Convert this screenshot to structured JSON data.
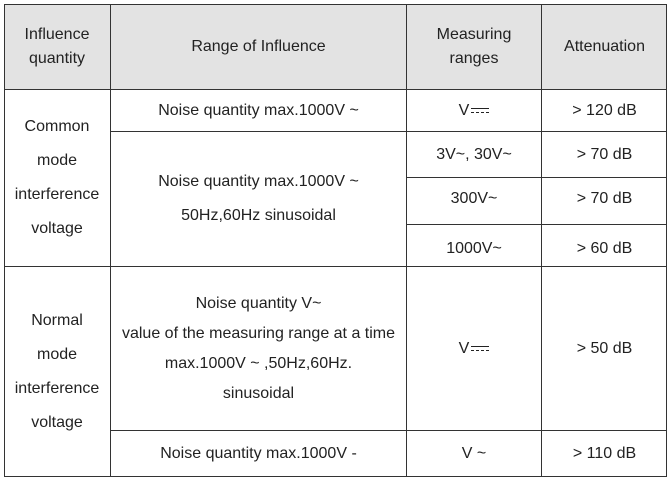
{
  "headers": {
    "influence_quantity": [
      "Influence",
      "quantity"
    ],
    "range_of_influence": "Range of Influence",
    "measuring_ranges": [
      "Measuring",
      "ranges"
    ],
    "attenuation": "Attenuation"
  },
  "common_mode": {
    "label": [
      "Common",
      "mode",
      "interference",
      "voltage"
    ],
    "row1": {
      "range": "Noise quantity max.1000V ~",
      "measuring": "V",
      "measuring_icon": "dc-symbol-icon",
      "attenuation": "> 120 dB"
    },
    "range2": [
      "Noise quantity max.1000V ~",
      "50Hz,60Hz sinusoidal"
    ],
    "row2": {
      "measuring": "3V~, 30V~",
      "attenuation": "> 70 dB"
    },
    "row3": {
      "measuring": "300V~",
      "attenuation": "> 70 dB"
    },
    "row4": {
      "measuring": "1000V~",
      "attenuation": "> 60 dB"
    }
  },
  "normal_mode": {
    "label": [
      "Normal",
      "mode",
      "interference",
      "voltage"
    ],
    "row1": {
      "range": [
        "Noise quantity V~",
        "value of the measuring range at a time",
        "max.1000V ~ ,50Hz,60Hz.",
        "sinusoidal"
      ],
      "measuring": "V",
      "measuring_icon": "dc-symbol-icon",
      "attenuation": "> 50 dB"
    },
    "row2": {
      "range": "Noise quantity max.1000V -",
      "measuring": "V ~",
      "attenuation": "> 110 dB"
    }
  }
}
